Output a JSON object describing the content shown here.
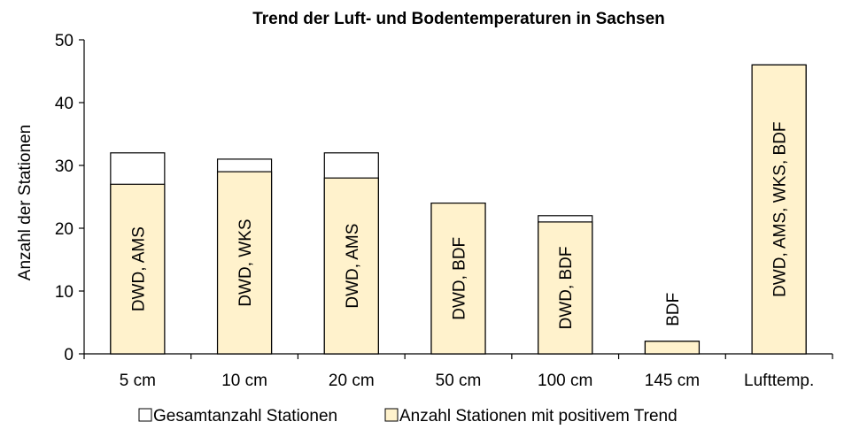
{
  "chart_data": {
    "type": "bar",
    "title": "Trend der Luft- und Bodentemperaturen in Sachsen",
    "xlabel": "",
    "ylabel": "Anzahl der Stationen",
    "ylim": [
      0,
      50
    ],
    "yticks": [
      0,
      10,
      20,
      30,
      40,
      50
    ],
    "grid": false,
    "legend_position": "bottom",
    "categories": [
      "5 cm",
      "10 cm",
      "20 cm",
      "50 cm",
      "100 cm",
      "145 cm",
      "Lufttemp."
    ],
    "series": [
      {
        "name": "Gesamtanzahl Stationen",
        "values": [
          32,
          31,
          32,
          24,
          22,
          2,
          46
        ],
        "color": "#ffffff"
      },
      {
        "name": "Anzahl Stationen mit positivem Trend",
        "values": [
          27,
          29,
          28,
          24,
          21,
          2,
          46
        ],
        "color": "#fff2cc"
      }
    ],
    "bar_labels": [
      "DWD, AMS",
      "DWD, WKS",
      "DWD, AMS",
      "DWD, BDF",
      "DWD, BDF",
      "BDF",
      "DWD, AMS, WKS, BDF"
    ]
  }
}
